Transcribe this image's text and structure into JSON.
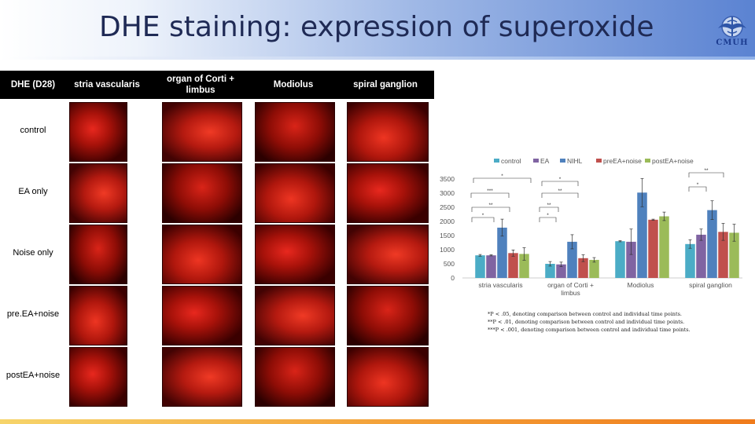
{
  "title": "DHE staining: expression of superoxide",
  "logo": {
    "icon": "university-logo-icon",
    "text": "CMUH"
  },
  "grid": {
    "corner": "DHE (D28)",
    "columns": [
      "stria vascularis",
      "organ of Corti + limbus",
      "Modiolus",
      "spiral ganglion"
    ],
    "rows": [
      "control",
      "EA only",
      "Noise only",
      "pre.EA+noise",
      "postEA+noise"
    ]
  },
  "chart_data": {
    "type": "bar",
    "categories": [
      "stria vascularis",
      "organ of Corti +\nlimbus",
      "Modiolus",
      "spiral ganglion"
    ],
    "series": [
      {
        "name": "control",
        "color": "#4bacc6",
        "values": [
          800,
          500,
          1300,
          1200
        ],
        "errors": [
          30,
          80,
          20,
          150
        ]
      },
      {
        "name": "EA",
        "color": "#8064a2",
        "values": [
          800,
          480,
          1280,
          1530
        ],
        "errors": [
          20,
          80,
          450,
          200
        ]
      },
      {
        "name": "NIHL",
        "color": "#4f81bd",
        "values": [
          1780,
          1280,
          3020,
          2400
        ],
        "errors": [
          300,
          250,
          500,
          330
        ]
      },
      {
        "name": "preEA+noise",
        "color": "#c0504d",
        "values": [
          880,
          700,
          2060,
          1630
        ],
        "errors": [
          110,
          120,
          20,
          300
        ]
      },
      {
        "name": "postEA+noise",
        "color": "#9bbb59",
        "values": [
          850,
          640,
          2180,
          1600
        ],
        "errors": [
          220,
          80,
          150,
          300
        ]
      }
    ],
    "ylim": [
      0,
      3500
    ],
    "yticks": [
      0,
      500,
      1000,
      1500,
      2000,
      2500,
      3000,
      3500
    ],
    "legend": "top",
    "annotations": [
      "*",
      "***",
      "**",
      "*",
      "*",
      "**",
      "**",
      "*",
      "**",
      "*"
    ]
  },
  "footnotes": [
    "*P < .05, denoting comparison between control and individual time points.",
    "**P < .01, denoting comparison between control and individual time points.",
    "***P < .001, denoting comparison between control and individual time points."
  ]
}
